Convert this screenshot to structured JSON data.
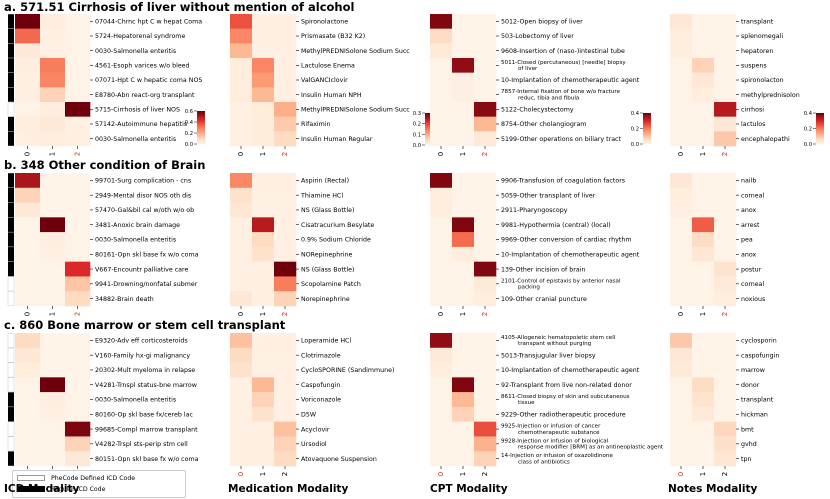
{
  "modality_labels": [
    "ICD Modality",
    "Medication Modality",
    "CPT Modality",
    "Notes Modality"
  ],
  "legend": {
    "items": [
      {
        "label": "PheCode Defined ICD Code",
        "color": "#ffffff"
      },
      {
        "label": "Regular ICD Code",
        "color": "#000000"
      }
    ]
  },
  "sections": [
    {
      "letter": "a.",
      "title": "571.51 Cirrhosis of liver without mention of alcohol"
    },
    {
      "letter": "b.",
      "title": "348 Other condition of Brain"
    },
    {
      "letter": "c.",
      "title": "860 Bone marrow or stem cell transplant"
    }
  ],
  "chart_data": [
    {
      "type": "heatmap",
      "section": "a",
      "modality": "ICD",
      "x_ticks": [
        "0",
        "1",
        "2"
      ],
      "x_tick_colors": [
        "#000000",
        "#000000",
        "#c0392b"
      ],
      "rows": [
        "07044-Chrnc hpt C w hepat Coma",
        "5724-Hepatorenal syndrome",
        "0030-Salmonella enteritis",
        "4561-Esoph varices w/o bleed",
        "07071-Hpt C w hepatic coma NOS",
        "E8780-Abn react-org transplant",
        "5715-Cirrhosis of liver NOS",
        "57142-Autoimmune hepatitis",
        "0030-Salmonella enteritis"
      ],
      "values": [
        [
          0.62,
          0.03,
          0.01
        ],
        [
          0.34,
          0.02,
          0.01
        ],
        [
          0.05,
          0.02,
          0.01
        ],
        [
          0.03,
          0.3,
          0.01
        ],
        [
          0.02,
          0.28,
          0.01
        ],
        [
          0.02,
          0.12,
          0.01
        ],
        [
          0.01,
          0.03,
          0.72
        ],
        [
          0.03,
          0.05,
          0.02
        ],
        [
          0.02,
          0.03,
          0.02
        ]
      ],
      "row_markers": [
        1,
        1,
        1,
        1,
        1,
        1,
        0,
        1,
        1
      ],
      "colorbar": {
        "range": [
          0,
          0.6
        ],
        "ticks": [
          "0.6",
          "0.4",
          "0.2",
          "0.0"
        ]
      }
    },
    {
      "type": "heatmap",
      "section": "a",
      "modality": "Medication",
      "x_ticks": [
        "0",
        "1",
        "2"
      ],
      "x_tick_colors": [
        "#000000",
        "#000000",
        "#c0392b"
      ],
      "rows": [
        "Spironolactone",
        "Prismasate (B32 K2)",
        "MethylPREDNISolone Sodium Succ",
        "Lactulose Enema",
        "ValGANCIclovir",
        "Insulin Human NPH",
        "MethylPREDNISolone Sodium Succ",
        "Rifaximin",
        "Insulin Human Regular"
      ],
      "values": [
        [
          0.19,
          0.01,
          0.01
        ],
        [
          0.14,
          0.01,
          0.01
        ],
        [
          0.09,
          0.01,
          0.01
        ],
        [
          0.02,
          0.14,
          0.01
        ],
        [
          0.02,
          0.12,
          0.01
        ],
        [
          0.02,
          0.09,
          0.01
        ],
        [
          0.01,
          0.02,
          0.1
        ],
        [
          0.01,
          0.02,
          0.07
        ],
        [
          0.01,
          0.02,
          0.05
        ]
      ],
      "colorbar": {
        "range": [
          0,
          0.3
        ],
        "ticks": [
          "0.3",
          "0.2",
          "0.1",
          "0.0"
        ]
      }
    },
    {
      "type": "heatmap",
      "section": "a",
      "modality": "CPT",
      "x_ticks": [
        "0",
        "1",
        "2"
      ],
      "x_tick_colors": [
        "#000000",
        "#000000",
        "#c0392b"
      ],
      "rows": [
        "5012-Open biopsy of liver",
        "503-Lobectomy of liver",
        "9608-Insertion of (naso-)intestinal tube",
        "5011-Closed (percutaneous) [needle] biopsy of liver",
        "10-Implantation of chemotherapeutic agent",
        "7857-Internal fixation of bone w/o fracture reduc, tibia and fibula",
        "5122-Cholecystectomy",
        "8754-Other cholangiogram",
        "5199-Other operations on biliary tract"
      ],
      "values": [
        [
          0.48,
          0.01,
          0.01
        ],
        [
          0.08,
          0.01,
          0.01
        ],
        [
          0.04,
          0.01,
          0.01
        ],
        [
          0.01,
          0.46,
          0.01
        ],
        [
          0.01,
          0.02,
          0.01
        ],
        [
          0.01,
          0.02,
          0.01
        ],
        [
          0.01,
          0.01,
          0.47
        ],
        [
          0.01,
          0.01,
          0.15
        ],
        [
          0.01,
          0.01,
          0.04
        ]
      ],
      "colorbar": {
        "range": [
          0,
          0.5
        ],
        "ticks": [
          "0.4",
          "0.2",
          "0.0"
        ]
      }
    },
    {
      "type": "heatmap",
      "section": "a",
      "modality": "Notes",
      "x_ticks": [
        "0",
        "1",
        "2"
      ],
      "x_tick_colors": [
        "#000000",
        "#000000",
        "#c0392b"
      ],
      "rows": [
        "transplant",
        "splenomegali",
        "hepatoren",
        "suspens",
        "spironolacton",
        "methylprednisolon",
        "cirrhosi",
        "lactulos",
        "encephalopathi"
      ],
      "values": [
        [
          0.05,
          0.01,
          0.01
        ],
        [
          0.03,
          0.01,
          0.01
        ],
        [
          0.03,
          0.01,
          0.01
        ],
        [
          0.01,
          0.1,
          0.01
        ],
        [
          0.01,
          0.05,
          0.01
        ],
        [
          0.01,
          0.03,
          0.01
        ],
        [
          0.01,
          0.01,
          0.42
        ],
        [
          0.01,
          0.01,
          0.05
        ],
        [
          0.01,
          0.01,
          0.12
        ]
      ],
      "colorbar": {
        "range": [
          0,
          0.5
        ],
        "ticks": [
          "0.4",
          "0.2",
          "0.0"
        ]
      }
    },
    {
      "type": "heatmap",
      "section": "b",
      "modality": "ICD",
      "x_ticks": [
        "0",
        "1",
        "2"
      ],
      "x_tick_colors": [
        "#000000",
        "#000000",
        "#c0392b"
      ],
      "rows": [
        "99701-Surg complication - cns",
        "2949-Mental disor NOS oth dis",
        "57470-Gal&bil cal w/oth w/o ob",
        "3481-Anoxic brain damage",
        "0030-Salmonella enteritis",
        "80161-Opn skl base fx w/o coma",
        "V667-Encountr palliative care",
        "9941-Drowning/nonfatal submer",
        "34882-Brain death"
      ],
      "values": [
        [
          0.52,
          0.01,
          0.01
        ],
        [
          0.12,
          0.01,
          0.01
        ],
        [
          0.05,
          0.01,
          0.01
        ],
        [
          0.01,
          0.62,
          0.01
        ],
        [
          0.01,
          0.03,
          0.01
        ],
        [
          0.01,
          0.02,
          0.01
        ],
        [
          0.01,
          0.01,
          0.45
        ],
        [
          0.01,
          0.01,
          0.15
        ],
        [
          0.01,
          0.01,
          0.1
        ]
      ],
      "row_markers": [
        1,
        1,
        1,
        1,
        1,
        1,
        1,
        0,
        0
      ],
      "colorbar": {
        "range": [
          0,
          0.6
        ],
        "ticks": []
      }
    },
    {
      "type": "heatmap",
      "section": "b",
      "modality": "Medication",
      "x_ticks": [
        "0",
        "1",
        "2"
      ],
      "x_tick_colors": [
        "#000000",
        "#000000",
        "#c0392b"
      ],
      "rows": [
        "Aspirin (Rectal)",
        "Thiamine HCl",
        "NS (Glass Bottle)",
        "Cisatracurium Besylate",
        "0.9% Sodium Chloride",
        "NORepinephrine",
        "NS (Glass Bottle)",
        "Scopolamine Patch",
        "Norepinephrine"
      ],
      "values": [
        [
          0.14,
          0.01,
          0.01
        ],
        [
          0.04,
          0.01,
          0.01
        ],
        [
          0.03,
          0.01,
          0.01
        ],
        [
          0.01,
          0.25,
          0.01
        ],
        [
          0.01,
          0.05,
          0.01
        ],
        [
          0.01,
          0.04,
          0.01
        ],
        [
          0.01,
          0.01,
          0.3
        ],
        [
          0.01,
          0.01,
          0.15
        ],
        [
          0.03,
          0.01,
          0.06
        ]
      ],
      "colorbar": {
        "range": [
          0,
          0.3
        ],
        "ticks": []
      }
    },
    {
      "type": "heatmap",
      "section": "b",
      "modality": "CPT",
      "x_ticks": [
        "0",
        "1",
        "2"
      ],
      "x_tick_colors": [
        "#000000",
        "#000000",
        "#c0392b"
      ],
      "rows": [
        "9906-Transfusion of coagulation factors",
        "5059-Other transplant of liver",
        "2911-Pharyngoscopy",
        "9981-Hypothermia (central) (local)",
        "9969-Other conversion of cardiac rhythm",
        "10-Implantation of chemotherapeutic agent",
        "139-Other incision of brain",
        "2101-Control of epistaxis by anterior nasal packing",
        "109-Other cranial puncture"
      ],
      "values": [
        [
          0.48,
          0.01,
          0.01
        ],
        [
          0.03,
          0.01,
          0.01
        ],
        [
          0.03,
          0.01,
          0.01
        ],
        [
          0.01,
          0.48,
          0.01
        ],
        [
          0.01,
          0.28,
          0.01
        ],
        [
          0.01,
          0.03,
          0.01
        ],
        [
          0.01,
          0.01,
          0.48
        ],
        [
          0.01,
          0.01,
          0.04
        ],
        [
          0.01,
          0.01,
          0.03
        ]
      ],
      "colorbar": {
        "range": [
          0,
          0.5
        ],
        "ticks": []
      }
    },
    {
      "type": "heatmap",
      "section": "b",
      "modality": "Notes",
      "x_ticks": [
        "0",
        "1",
        "2"
      ],
      "x_tick_colors": [
        "#000000",
        "#000000",
        "#c0392b"
      ],
      "rows": [
        "nailb",
        "corneal",
        "anox",
        "arrest",
        "pea",
        "anox",
        "postur",
        "corneal",
        "noxious"
      ],
      "values": [
        [
          0.05,
          0.01,
          0.01
        ],
        [
          0.03,
          0.01,
          0.01
        ],
        [
          0.02,
          0.01,
          0.01
        ],
        [
          0.01,
          0.3,
          0.01
        ],
        [
          0.01,
          0.08,
          0.01
        ],
        [
          0.01,
          0.05,
          0.01
        ],
        [
          0.01,
          0.01,
          0.06
        ],
        [
          0.01,
          0.01,
          0.04
        ],
        [
          0.01,
          0.01,
          0.03
        ]
      ],
      "colorbar": {
        "range": [
          0,
          0.5
        ],
        "ticks": []
      }
    },
    {
      "type": "heatmap",
      "section": "c",
      "modality": "ICD",
      "x_ticks": [
        "0",
        "1",
        "2"
      ],
      "x_tick_colors": [
        "#c0392b",
        "#000000",
        "#000000"
      ],
      "rows": [
        "E9320-Adv eff corticosteroids",
        "V160-Family hx-gi malignancy",
        "20302-Mult myeloma in relapse",
        "V4281-Trnspl status-bne marrow",
        "0030-Salmonella enteritis",
        "80160-Op skl base fx/cereb lac",
        "99685-Compl marrow transplant",
        "V4282-Trspl sts-perip stm cell",
        "80151-Opn skl base fx w/o coma"
      ],
      "values": [
        [
          0.1,
          0.01,
          0.01
        ],
        [
          0.06,
          0.01,
          0.01
        ],
        [
          0.04,
          0.01,
          0.01
        ],
        [
          0.01,
          0.62,
          0.01
        ],
        [
          0.01,
          0.03,
          0.01
        ],
        [
          0.01,
          0.02,
          0.01
        ],
        [
          0.01,
          0.01,
          0.58
        ],
        [
          0.01,
          0.01,
          0.12
        ],
        [
          0.01,
          0.01,
          0.05
        ]
      ],
      "row_markers": [
        0,
        0,
        0,
        0,
        1,
        1,
        0,
        0,
        1
      ],
      "colorbar": {
        "range": [
          0,
          0.6
        ],
        "ticks": []
      }
    },
    {
      "type": "heatmap",
      "section": "c",
      "modality": "Medication",
      "x_ticks": [
        "0",
        "1",
        "2"
      ],
      "x_tick_colors": [
        "#c0392b",
        "#000000",
        "#000000"
      ],
      "rows": [
        "Loperamide HCl",
        "Clotrimazole",
        "CycloSPORINE (Sandimmune)",
        "Caspofungin",
        "Voriconazole",
        "D5W",
        "Acyclovir",
        "Ursodiol",
        "Atovaquone Suspension"
      ],
      "values": [
        [
          0.08,
          0.01,
          0.01
        ],
        [
          0.05,
          0.01,
          0.01
        ],
        [
          0.04,
          0.01,
          0.01
        ],
        [
          0.01,
          0.09,
          0.01
        ],
        [
          0.01,
          0.06,
          0.01
        ],
        [
          0.01,
          0.04,
          0.01
        ],
        [
          0.01,
          0.01,
          0.08
        ],
        [
          0.01,
          0.01,
          0.06
        ],
        [
          0.01,
          0.01,
          0.05
        ]
      ],
      "colorbar": {
        "range": [
          0,
          0.3
        ],
        "ticks": []
      }
    },
    {
      "type": "heatmap",
      "section": "c",
      "modality": "CPT",
      "x_ticks": [
        "0",
        "1",
        "2"
      ],
      "x_tick_colors": [
        "#c0392b",
        "#000000",
        "#000000"
      ],
      "rows": [
        "4105-Allogeneic hematopoietic stem cell transpant without purging",
        "5013-Transjugular liver biopsy",
        "10-Implantation of chemotherapeutic agent",
        "92-Transplant from live non-related donor",
        "8611-Closed biopsy of skin and subcutaneous tissue",
        "9229-Other radiotherapeutic procedure",
        "9925-Injection or infusion of cancer chemotherapeutic substance",
        "9928-Injection or infusion of biological response modifier [BRM] as an antineoplastic agent",
        "14-Injection or infusion of oxazolidinone class of antibiotics"
      ],
      "values": [
        [
          0.46,
          0.01,
          0.01
        ],
        [
          0.04,
          0.01,
          0.01
        ],
        [
          0.03,
          0.01,
          0.01
        ],
        [
          0.01,
          0.48,
          0.01
        ],
        [
          0.01,
          0.15,
          0.01
        ],
        [
          0.01,
          0.1,
          0.01
        ],
        [
          0.01,
          0.01,
          0.32
        ],
        [
          0.01,
          0.01,
          0.16
        ],
        [
          0.01,
          0.01,
          0.1
        ]
      ],
      "colorbar": {
        "range": [
          0,
          0.5
        ],
        "ticks": []
      }
    },
    {
      "type": "heatmap",
      "section": "c",
      "modality": "Notes",
      "x_ticks": [
        "0",
        "1",
        "2"
      ],
      "x_tick_colors": [
        "#c0392b",
        "#000000",
        "#000000"
      ],
      "rows": [
        "cyclosporin",
        "caspofungin",
        "marrow",
        "donor",
        "transplant",
        "hickman",
        "bmt",
        "gvhd",
        "tpn"
      ],
      "values": [
        [
          0.12,
          0.01,
          0.01
        ],
        [
          0.05,
          0.01,
          0.01
        ],
        [
          0.04,
          0.01,
          0.01
        ],
        [
          0.01,
          0.08,
          0.01
        ],
        [
          0.01,
          0.06,
          0.01
        ],
        [
          0.01,
          0.04,
          0.01
        ],
        [
          0.01,
          0.01,
          0.09
        ],
        [
          0.01,
          0.01,
          0.07
        ],
        [
          0.01,
          0.01,
          0.05
        ]
      ],
      "colorbar": {
        "range": [
          0,
          0.5
        ],
        "ticks": []
      }
    }
  ]
}
